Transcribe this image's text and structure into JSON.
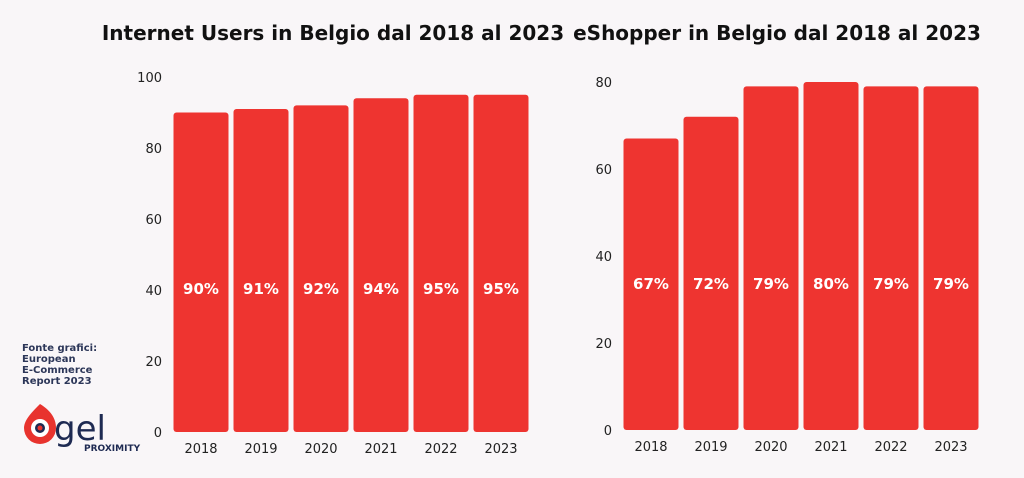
{
  "chart_data": [
    {
      "type": "bar",
      "title": "Internet Users in Belgio dal 2018 al 2023",
      "categories": [
        "2018",
        "2019",
        "2020",
        "2021",
        "2022",
        "2023"
      ],
      "values": [
        90,
        91,
        92,
        94,
        95,
        95
      ],
      "data_labels": [
        "90%",
        "91%",
        "92%",
        "94%",
        "95%",
        "95%"
      ],
      "ylim": [
        0,
        100
      ],
      "yticks": [
        0,
        20,
        40,
        60,
        80,
        100
      ],
      "xlabel": "",
      "ylabel": "",
      "grid": false,
      "color": "#ee3430"
    },
    {
      "type": "bar",
      "title": "eShopper in Belgio dal 2018 al 2023",
      "categories": [
        "2018",
        "2019",
        "2020",
        "2021",
        "2022",
        "2023"
      ],
      "values": [
        67,
        72,
        79,
        80,
        79,
        79
      ],
      "data_labels": [
        "67%",
        "72%",
        "79%",
        "80%",
        "79%",
        "79%"
      ],
      "ylim": [
        0,
        80
      ],
      "yticks": [
        0,
        20,
        40,
        60,
        80
      ],
      "xlabel": "",
      "ylabel": "",
      "grid": false,
      "color": "#ee3430"
    }
  ],
  "source": {
    "lines": [
      "Fonte grafici:",
      "European",
      "E-Commerce",
      "Report 2023"
    ]
  },
  "logo": {
    "text": "gel",
    "subtext": "PROXIMITY",
    "colors": {
      "red": "#e8332e",
      "navy": "#1e2a52"
    }
  }
}
